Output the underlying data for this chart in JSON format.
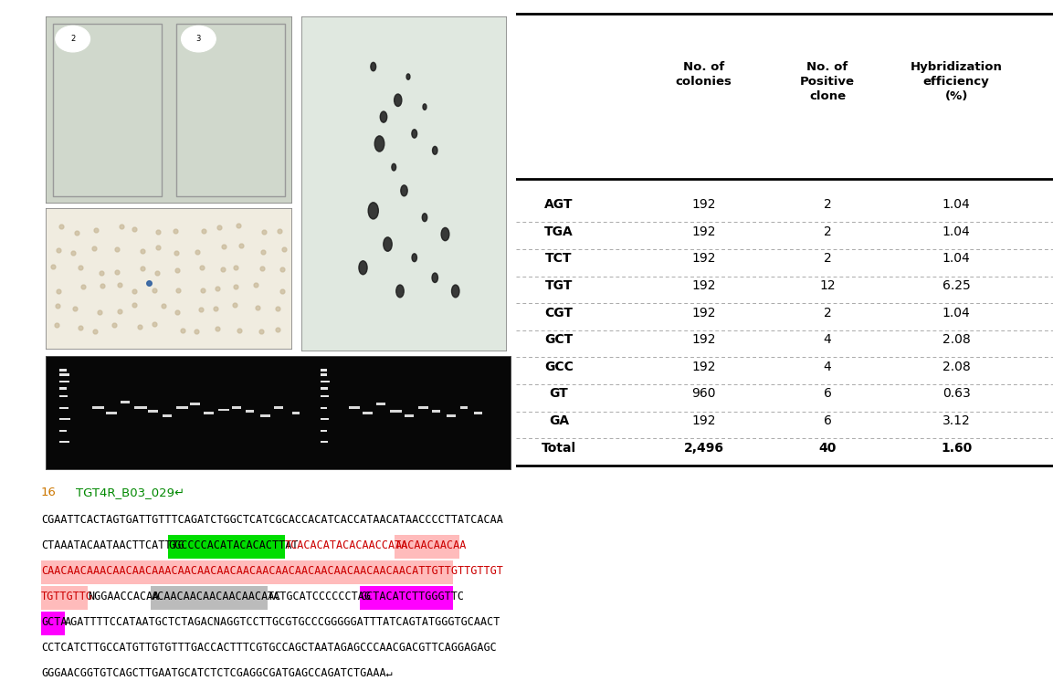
{
  "table_headers": [
    "",
    "No. of\ncolonies",
    "No. of\nPositive\nclone",
    "Hybridization\nefficiency\n(%)"
  ],
  "table_rows": [
    [
      "AGT",
      "192",
      "2",
      "1.04"
    ],
    [
      "TGA",
      "192",
      "2",
      "1.04"
    ],
    [
      "TCT",
      "192",
      "2",
      "1.04"
    ],
    [
      "TGT",
      "192",
      "12",
      "6.25"
    ],
    [
      "CGT",
      "192",
      "2",
      "1.04"
    ],
    [
      "GCT",
      "192",
      "4",
      "2.08"
    ],
    [
      "GCC",
      "192",
      "4",
      "2.08"
    ],
    [
      "GT",
      "960",
      "6",
      "0.63"
    ],
    [
      "GA",
      "192",
      "6",
      "3.12"
    ],
    [
      "Total",
      "2,496",
      "40",
      "1.60"
    ]
  ],
  "seq_label_num": "16",
  "seq_label_name": "TGT4R_B03_029↵",
  "seq_lines": [
    [
      {
        "text": "CGAATTCACTAGTGATTGTTTCAGATCTGGCTCATCGCACCACATCACCATAACATAACCCCTTATCACAA",
        "color": "#000000",
        "bg": null
      }
    ],
    [
      {
        "text": "CTAAATACAATAACTTCATTTG",
        "color": "#000000",
        "bg": null
      },
      {
        "text": "GGCCCCACATACACACTTAT",
        "color": "#000000",
        "bg": "#00dd00"
      },
      {
        "text": "TCACACATACACAACCATA",
        "color": "#cc0000",
        "bg": null
      },
      {
        "text": "AACAACAACAA",
        "color": "#cc0000",
        "bg": "#ffbbbb"
      }
    ],
    [
      {
        "text": "CAACAACAAACAACAACAAACAACAACAACAACAACAACAACAACAACAACAACAACATTGTTGTTGTTGT",
        "color": "#cc0000",
        "bg": "#ffbbbb"
      }
    ],
    [
      {
        "text": "TGTTGTTG",
        "color": "#cc0000",
        "bg": "#ffbbbb"
      },
      {
        "text": "NGGAACCACAA",
        "color": "#000000",
        "bg": null
      },
      {
        "text": "ACAACAACAACAACAACAAC",
        "color": "#000000",
        "bg": "#bbbbbb"
      },
      {
        "text": "TATGCATCCCCCCTAG",
        "color": "#000000",
        "bg": null
      },
      {
        "text": "GCTACATCTTGGGTTC",
        "color": "#000000",
        "bg": "#ff00ff"
      }
    ],
    [
      {
        "text": "GCTA",
        "color": "#000000",
        "bg": "#ff00ff"
      },
      {
        "text": "AGATTTTCCATAATGCTCTAGACNAGGTCCTTGCGTGCCCGGGGGATTTATCAGTATGGGTGCAACT",
        "color": "#000000",
        "bg": null
      }
    ],
    [
      {
        "text": "CCTCATCTTGCCATGTTGTGTTTGACCACTTTCGTGCCAGCTAATAGAGCCCAACGACGTTCAGGAGAGC",
        "color": "#000000",
        "bg": null
      }
    ],
    [
      {
        "text": "GGGAACGGTGTCAGCTTGAATGCATCTCTCGAGGCGATGAGCCAGATCTGAAA↵",
        "color": "#000000",
        "bg": null
      }
    ]
  ],
  "img_top_left_color": "#d8ddd0",
  "img_top_right_color": "#dde8dc",
  "img_mid_left_color": "#e8e4d8",
  "img_gel_color": "#0a0a0a",
  "fig_width": 11.53,
  "fig_height": 7.57,
  "dpi": 100
}
